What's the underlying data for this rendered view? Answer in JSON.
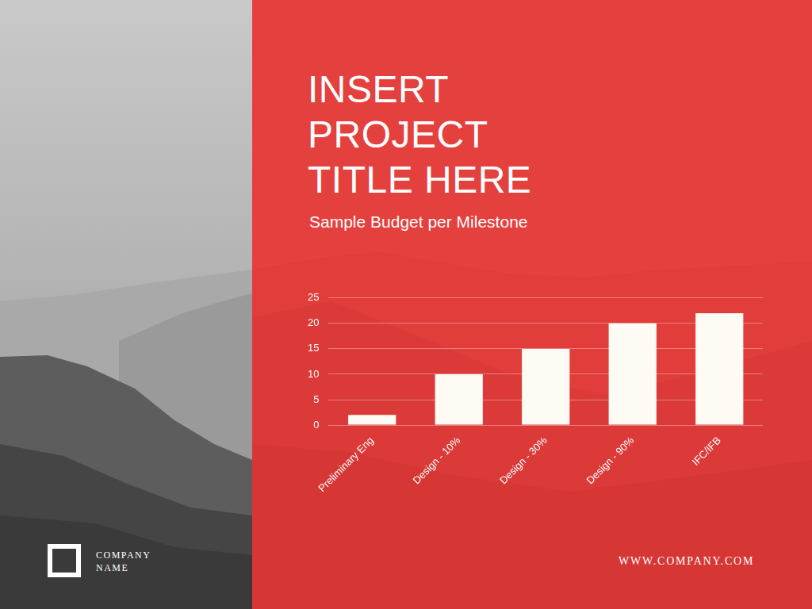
{
  "chart_data": {
    "type": "bar",
    "title": "INSERT PROJECT TITLE HERE",
    "subtitle": "Sample Budget per Milestone",
    "categories": [
      "Preliminary Eng",
      "Design - 10%",
      "Design - 30%",
      "Design - 90%",
      "IFC/IFB"
    ],
    "values": [
      2,
      10,
      15,
      20,
      22
    ],
    "color": "#fdfbf3",
    "ylim": [
      0,
      25
    ],
    "yticks": [
      0,
      5,
      10,
      15,
      20,
      25
    ],
    "grid": true
  },
  "company_name": "COMPANY NAME",
  "website": "WWW.COMPANY.COM"
}
